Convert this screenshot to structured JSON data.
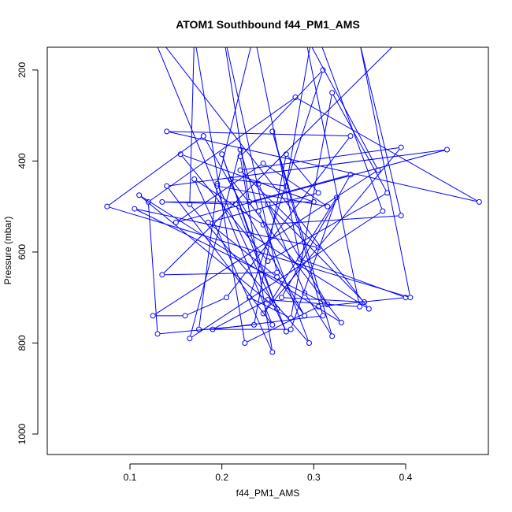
{
  "chart_data": {
    "type": "line",
    "title": "ATOM1 Southbound f44_PM1_AMS",
    "xlabel": "f44_PM1_AMS",
    "ylabel": "Pressure (mbar)",
    "xlim": [
      0.01,
      0.49
    ],
    "ylim": [
      1045,
      150
    ],
    "y_reversed": true,
    "x_ticks": [
      0.1,
      0.2,
      0.3,
      0.4
    ],
    "x_tick_labels": [
      "0.1",
      "0.2",
      "0.3",
      "0.4"
    ],
    "y_ticks": [
      200,
      400,
      600,
      800,
      1000
    ],
    "y_tick_labels": [
      "200",
      "400",
      "600",
      "800",
      "1000"
    ],
    "grid": false,
    "colors": {
      "series": "#0000ff",
      "axis": "#000000"
    },
    "series": [
      {
        "points": [
          [
            0.24,
            450
          ],
          [
            0.29,
            690
          ],
          [
            0.32,
            785
          ],
          [
            0.255,
            335
          ],
          [
            0.31,
            740
          ],
          [
            0.19,
            770
          ],
          [
            0.25,
            705
          ],
          [
            0.35,
            720
          ],
          [
            0.29,
            120
          ],
          [
            0.37,
            420
          ],
          [
            0.125,
            740
          ],
          [
            0.16,
            740
          ],
          [
            0.205,
            700
          ],
          [
            0.34,
            345
          ],
          [
            0.14,
            335
          ],
          [
            0.48,
            490
          ],
          [
            0.28,
            260
          ],
          [
            0.12,
            490
          ],
          [
            0.13,
            780
          ],
          [
            0.235,
            760
          ],
          [
            0.27,
            385
          ],
          [
            0.305,
            470
          ],
          [
            0.185,
            535
          ],
          [
            0.26,
            655
          ],
          [
            0.29,
            740
          ],
          [
            0.18,
            345
          ],
          [
            0.075,
            500
          ],
          [
            0.405,
            700
          ],
          [
            0.35,
            140
          ],
          [
            0.395,
            520
          ],
          [
            0.245,
            540
          ],
          [
            0.17,
            440
          ],
          [
            0.255,
            820
          ],
          [
            0.22,
            390
          ],
          [
            0.31,
            200
          ],
          [
            0.23,
            700
          ],
          [
            0.275,
            745
          ],
          [
            0.32,
            250
          ],
          [
            0.38,
            470
          ],
          [
            0.25,
            620
          ],
          [
            0.155,
            385
          ],
          [
            0.3,
            490
          ],
          [
            0.135,
            490
          ],
          [
            0.215,
            495
          ],
          [
            0.27,
            775
          ],
          [
            0.195,
            450
          ],
          [
            0.235,
            120
          ],
          [
            0.285,
            615
          ],
          [
            0.4,
            700
          ],
          [
            0.305,
            720
          ],
          [
            0.225,
            800
          ],
          [
            0.17,
            125
          ],
          [
            0.165,
            495
          ],
          [
            0.295,
            800
          ],
          [
            0.24,
            510
          ],
          [
            0.22,
            375
          ],
          [
            0.165,
            790
          ],
          [
            0.375,
            510
          ],
          [
            0.3,
            100
          ],
          [
            0.27,
            455
          ],
          [
            0.21,
            440
          ],
          [
            0.33,
            755
          ],
          [
            0.11,
            475
          ],
          [
            0.26,
            725
          ],
          [
            0.2,
            385
          ],
          [
            0.23,
            560
          ],
          [
            0.36,
            725
          ],
          [
            0.12,
            100
          ],
          [
            0.255,
            760
          ],
          [
            0.14,
            455
          ],
          [
            0.445,
            375
          ],
          [
            0.15,
            535
          ],
          [
            0.245,
            405
          ],
          [
            0.315,
            500
          ],
          [
            0.195,
            455
          ],
          [
            0.175,
            770
          ],
          [
            0.275,
            770
          ],
          [
            0.325,
            480
          ],
          [
            0.245,
            735
          ],
          [
            0.395,
            370
          ],
          [
            0.22,
            420
          ],
          [
            0.305,
            590
          ],
          [
            0.105,
            505
          ],
          [
            0.315,
            715
          ],
          [
            0.25,
            495
          ],
          [
            0.355,
            710
          ],
          [
            0.265,
            700
          ],
          [
            0.34,
            430
          ],
          [
            0.23,
            490
          ],
          [
            0.2,
            100
          ],
          [
            0.26,
            645
          ],
          [
            0.135,
            650
          ],
          [
            0.405,
            110
          ]
        ]
      }
    ]
  }
}
